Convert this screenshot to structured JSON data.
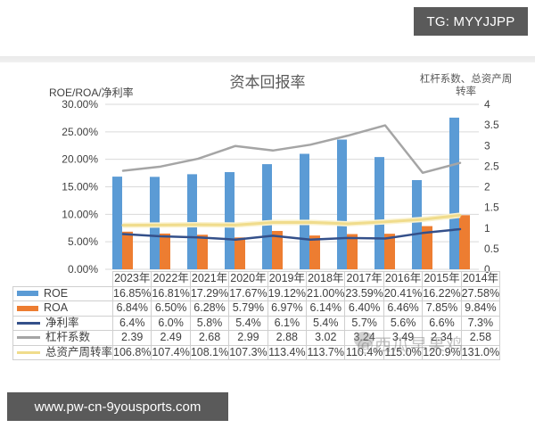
{
  "badge": {
    "text": "TG: MYYJJPP"
  },
  "banner": {
    "text": "www.pw-cn-9yousports.com"
  },
  "watermark": {
    "text": "@西瓜早果鸡"
  },
  "colors": {
    "roe": "#5b9bd5",
    "roa": "#ed7d31",
    "net_margin": "#34508a",
    "leverage": "#a5a5a5",
    "turnover": "#f0dc8c",
    "grid": "#d9d9d9"
  },
  "chart_data": {
    "type": "bar",
    "title": "资本回报率",
    "ylabel": "ROE/ROA/净利率",
    "y2label_line1": "杠杆系数、总资产周",
    "y2label_line2": "转率",
    "ylim": [
      0,
      30
    ],
    "y_ticks": [
      "0.00%",
      "5.00%",
      "10.00%",
      "15.00%",
      "20.00%",
      "25.00%",
      "30.00%"
    ],
    "y2lim": [
      0,
      4
    ],
    "y2_ticks": [
      "0",
      "0.5",
      "1",
      "1.5",
      "2",
      "2.5",
      "3",
      "3.5",
      "4"
    ],
    "grid": true,
    "legend_position": "data-table",
    "categories": [
      "2023年",
      "2022年",
      "2021年",
      "2020年",
      "2019年",
      "2018年",
      "2017年",
      "2016年",
      "2015年",
      "2014年"
    ],
    "series": [
      {
        "name": "ROE",
        "kind": "bar",
        "axis": "left",
        "color_key": "roe",
        "values": [
          16.85,
          16.81,
          17.29,
          17.67,
          19.12,
          21.0,
          23.59,
          20.41,
          16.22,
          27.58
        ],
        "labels": [
          "16.85%",
          "16.81%",
          "17.29%",
          "17.67%",
          "19.12%",
          "21.00%",
          "23.59%",
          "20.41%",
          "16.22%",
          "27.58%"
        ]
      },
      {
        "name": "ROA",
        "kind": "bar",
        "axis": "left",
        "color_key": "roa",
        "values": [
          6.84,
          6.5,
          6.28,
          5.79,
          6.97,
          6.14,
          6.4,
          6.46,
          7.85,
          9.84
        ],
        "labels": [
          "6.84%",
          "6.50%",
          "6.28%",
          "5.79%",
          "6.97%",
          "6.14%",
          "6.40%",
          "6.46%",
          "7.85%",
          "9.84%"
        ]
      },
      {
        "name": "净利率",
        "kind": "line",
        "axis": "left",
        "color_key": "net_margin",
        "values": [
          6.4,
          6.0,
          5.8,
          5.4,
          6.1,
          5.4,
          5.7,
          5.6,
          6.6,
          7.3
        ],
        "labels": [
          "6.4%",
          "6.0%",
          "5.8%",
          "5.4%",
          "6.1%",
          "5.4%",
          "5.7%",
          "5.6%",
          "6.6%",
          "7.3%"
        ]
      },
      {
        "name": "杠杆系数",
        "kind": "line",
        "axis": "right",
        "color_key": "leverage",
        "values": [
          2.39,
          2.49,
          2.68,
          2.99,
          2.88,
          3.02,
          3.24,
          3.49,
          2.34,
          2.58
        ],
        "labels": [
          "2.39",
          "2.49",
          "2.68",
          "2.99",
          "2.88",
          "3.02",
          "3.24",
          "3.49",
          "2.34",
          "2.58"
        ]
      },
      {
        "name": "总资产周转率",
        "kind": "line",
        "axis": "right",
        "color_key": "turnover",
        "values": [
          1.068,
          1.074,
          1.081,
          1.073,
          1.134,
          1.137,
          1.104,
          1.15,
          1.209,
          1.31
        ],
        "labels": [
          "106.8%",
          "107.4%",
          "108.1%",
          "107.3%",
          "113.4%",
          "113.7%",
          "110.4%",
          "115.0%",
          "120.9%",
          "131.0%"
        ]
      }
    ]
  }
}
